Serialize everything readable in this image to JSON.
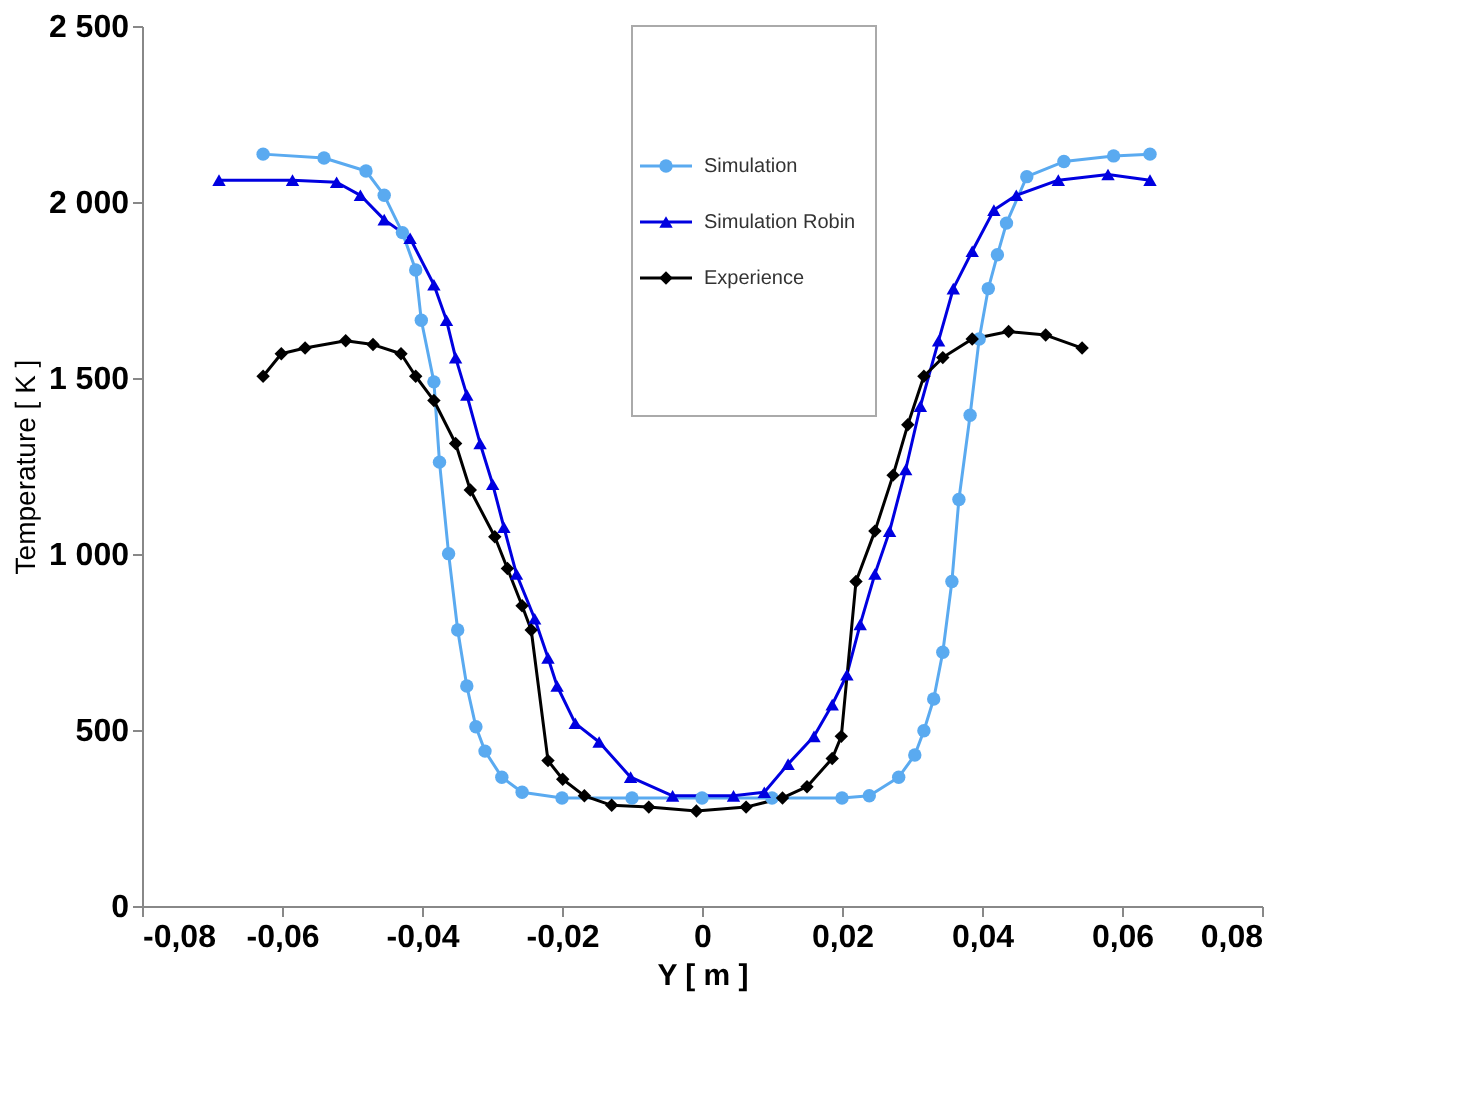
{
  "chart_data": {
    "type": "line",
    "xlabel": "Y [ m ]",
    "ylabel": "Temperature [ K ]",
    "xlim": [
      -0.08,
      0.08
    ],
    "ylim": [
      0,
      2500
    ],
    "xticks": [
      {
        "value": -0.08,
        "label": "-0,08"
      },
      {
        "value": -0.06,
        "label": "-0,06"
      },
      {
        "value": -0.04,
        "label": "-0,04"
      },
      {
        "value": -0.02,
        "label": "-0,02"
      },
      0,
      {
        "value": 0.02,
        "label": "0,02"
      },
      {
        "value": 0.04,
        "label": "0,04"
      },
      {
        "value": 0.06,
        "label": "0,06"
      },
      {
        "value": 0.08,
        "label": "0,08"
      }
    ],
    "yticks": [
      0,
      500,
      {
        "value": 1000,
        "label": "1 000"
      },
      {
        "value": 1500,
        "label": "1 500"
      },
      {
        "value": 2000,
        "label": "2 000"
      },
      {
        "value": 2500,
        "label": "2 500"
      }
    ],
    "grid": false,
    "legend": "top",
    "line_style": "solid",
    "series": [
      {
        "name": "Simulation",
        "color": "#5aaaf0",
        "marker": "circle",
        "x": [
          -0.0627,
          -0.054,
          -0.048,
          -0.0454,
          -0.0428,
          -0.0409,
          -0.0401,
          -0.0383,
          -0.0375,
          -0.0362,
          -0.0349,
          -0.0336,
          -0.0323,
          -0.031,
          -0.0286,
          -0.0257,
          -0.02,
          -0.01,
          0,
          0.01,
          0.02,
          0.0239,
          0.0281,
          0.0304,
          0.0317,
          0.0331,
          0.0344,
          0.0357,
          0.0367,
          0.0383,
          0.0396,
          0.0409,
          0.0422,
          0.0435,
          0.0464,
          0.0517,
          0.0588,
          0.064
        ],
        "values": [
          2136,
          2125,
          2088,
          2019,
          1913,
          1807,
          1664,
          1489,
          1261,
          1001,
          784,
          625,
          509,
          440,
          366,
          323,
          307,
          307,
          307,
          307,
          307,
          313,
          366,
          429,
          498,
          588,
          721,
          922,
          1155,
          1394,
          1611,
          1754,
          1850,
          1940,
          2072,
          2115,
          2131,
          2136
        ]
      },
      {
        "name": "Simulation Robin",
        "color": "#0000e0",
        "marker": "triangle",
        "x": [
          -0.069,
          -0.0585,
          -0.0522,
          -0.0488,
          -0.0454,
          -0.0417,
          -0.0383,
          -0.0365,
          -0.0352,
          -0.0336,
          -0.0317,
          -0.0299,
          -0.0283,
          -0.0265,
          -0.0239,
          -0.022,
          -0.0207,
          -0.0181,
          -0.0147,
          -0.0102,
          -0.0042,
          0.0045,
          0.0089,
          0.0123,
          0.016,
          0.0186,
          0.0207,
          0.0226,
          0.0247,
          0.0268,
          0.0291,
          0.0312,
          0.0338,
          0.0359,
          0.0386,
          0.0417,
          0.0449,
          0.0509,
          0.058,
          0.064
        ],
        "values": [
          2062,
          2062,
          2056,
          2019,
          1950,
          1897,
          1765,
          1664,
          1558,
          1452,
          1314,
          1198,
          1076,
          943,
          816,
          705,
          625,
          519,
          466,
          366,
          313,
          313,
          323,
          403,
          482,
          572,
          657,
          800,
          943,
          1065,
          1240,
          1420,
          1606,
          1754,
          1860,
          1977,
          2019,
          2062,
          2078,
          2062
        ]
      },
      {
        "name": "Experience",
        "color": "#000000",
        "marker": "diamond",
        "x": [
          -0.0627,
          -0.0601,
          -0.0567,
          -0.0509,
          -0.047,
          -0.043,
          -0.0409,
          -0.0383,
          -0.0352,
          -0.0331,
          -0.0296,
          -0.0278,
          -0.0257,
          -0.0244,
          -0.022,
          -0.0199,
          -0.0168,
          -0.0129,
          -0.0076,
          -0.0008,
          0.0063,
          0.0115,
          0.015,
          0.0186,
          0.0199,
          0.022,
          0.0247,
          0.0273,
          0.0294,
          0.0317,
          0.0344,
          0.0386,
          0.0438,
          0.0491,
          0.0543
        ],
        "values": [
          1505,
          1569,
          1585,
          1606,
          1595,
          1569,
          1505,
          1436,
          1314,
          1182,
          1049,
          959,
          853,
          784,
          413,
          360,
          313,
          286,
          281,
          270,
          281,
          307,
          339,
          419,
          482,
          922,
          1065,
          1224,
          1367,
          1505,
          1558,
          1611,
          1632,
          1622,
          1585
        ]
      }
    ]
  }
}
